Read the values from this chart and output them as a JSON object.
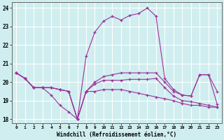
{
  "xlabel": "Windchill (Refroidissement éolien,°C)",
  "bg_color": "#d0eef0",
  "grid_color": "#ffffff",
  "line_color": "#993399",
  "hours": [
    0,
    1,
    2,
    3,
    4,
    5,
    6,
    7,
    8,
    9,
    10,
    11,
    12,
    13,
    14,
    15,
    16,
    17,
    18,
    19,
    20,
    21,
    22,
    23
  ],
  "curve1": [
    20.5,
    20.2,
    19.7,
    19.7,
    19.7,
    19.6,
    19.5,
    18.0,
    19.5,
    19.5,
    19.6,
    19.6,
    19.6,
    19.5,
    19.4,
    19.3,
    19.2,
    19.1,
    19.0,
    18.85,
    18.75,
    18.75,
    18.65,
    18.65
  ],
  "curve2": [
    20.5,
    20.2,
    19.7,
    19.7,
    19.3,
    18.75,
    18.4,
    18.0,
    19.5,
    19.9,
    20.1,
    20.1,
    20.1,
    20.15,
    20.15,
    20.15,
    20.2,
    19.7,
    19.25,
    19.0,
    18.95,
    18.85,
    18.75,
    18.65
  ],
  "curve3": [
    20.5,
    20.2,
    19.7,
    19.7,
    19.7,
    19.6,
    19.5,
    18.0,
    19.5,
    20.0,
    20.3,
    20.4,
    20.5,
    20.5,
    20.5,
    20.5,
    20.5,
    20.0,
    19.5,
    19.3,
    19.25,
    20.4,
    20.4,
    19.5
  ],
  "curve4": [
    20.5,
    20.2,
    19.7,
    19.7,
    19.7,
    19.6,
    19.5,
    18.0,
    21.4,
    22.7,
    23.3,
    23.55,
    23.35,
    23.6,
    23.7,
    24.0,
    23.55,
    20.2,
    19.6,
    19.3,
    19.25,
    20.4,
    20.4,
    18.8
  ],
  "ylim": [
    17.8,
    24.3
  ],
  "yticks": [
    18,
    19,
    20,
    21,
    22,
    23,
    24
  ],
  "xticks": [
    0,
    1,
    2,
    3,
    4,
    5,
    6,
    7,
    8,
    9,
    10,
    11,
    12,
    13,
    14,
    15,
    16,
    17,
    18,
    19,
    20,
    21,
    22,
    23
  ]
}
